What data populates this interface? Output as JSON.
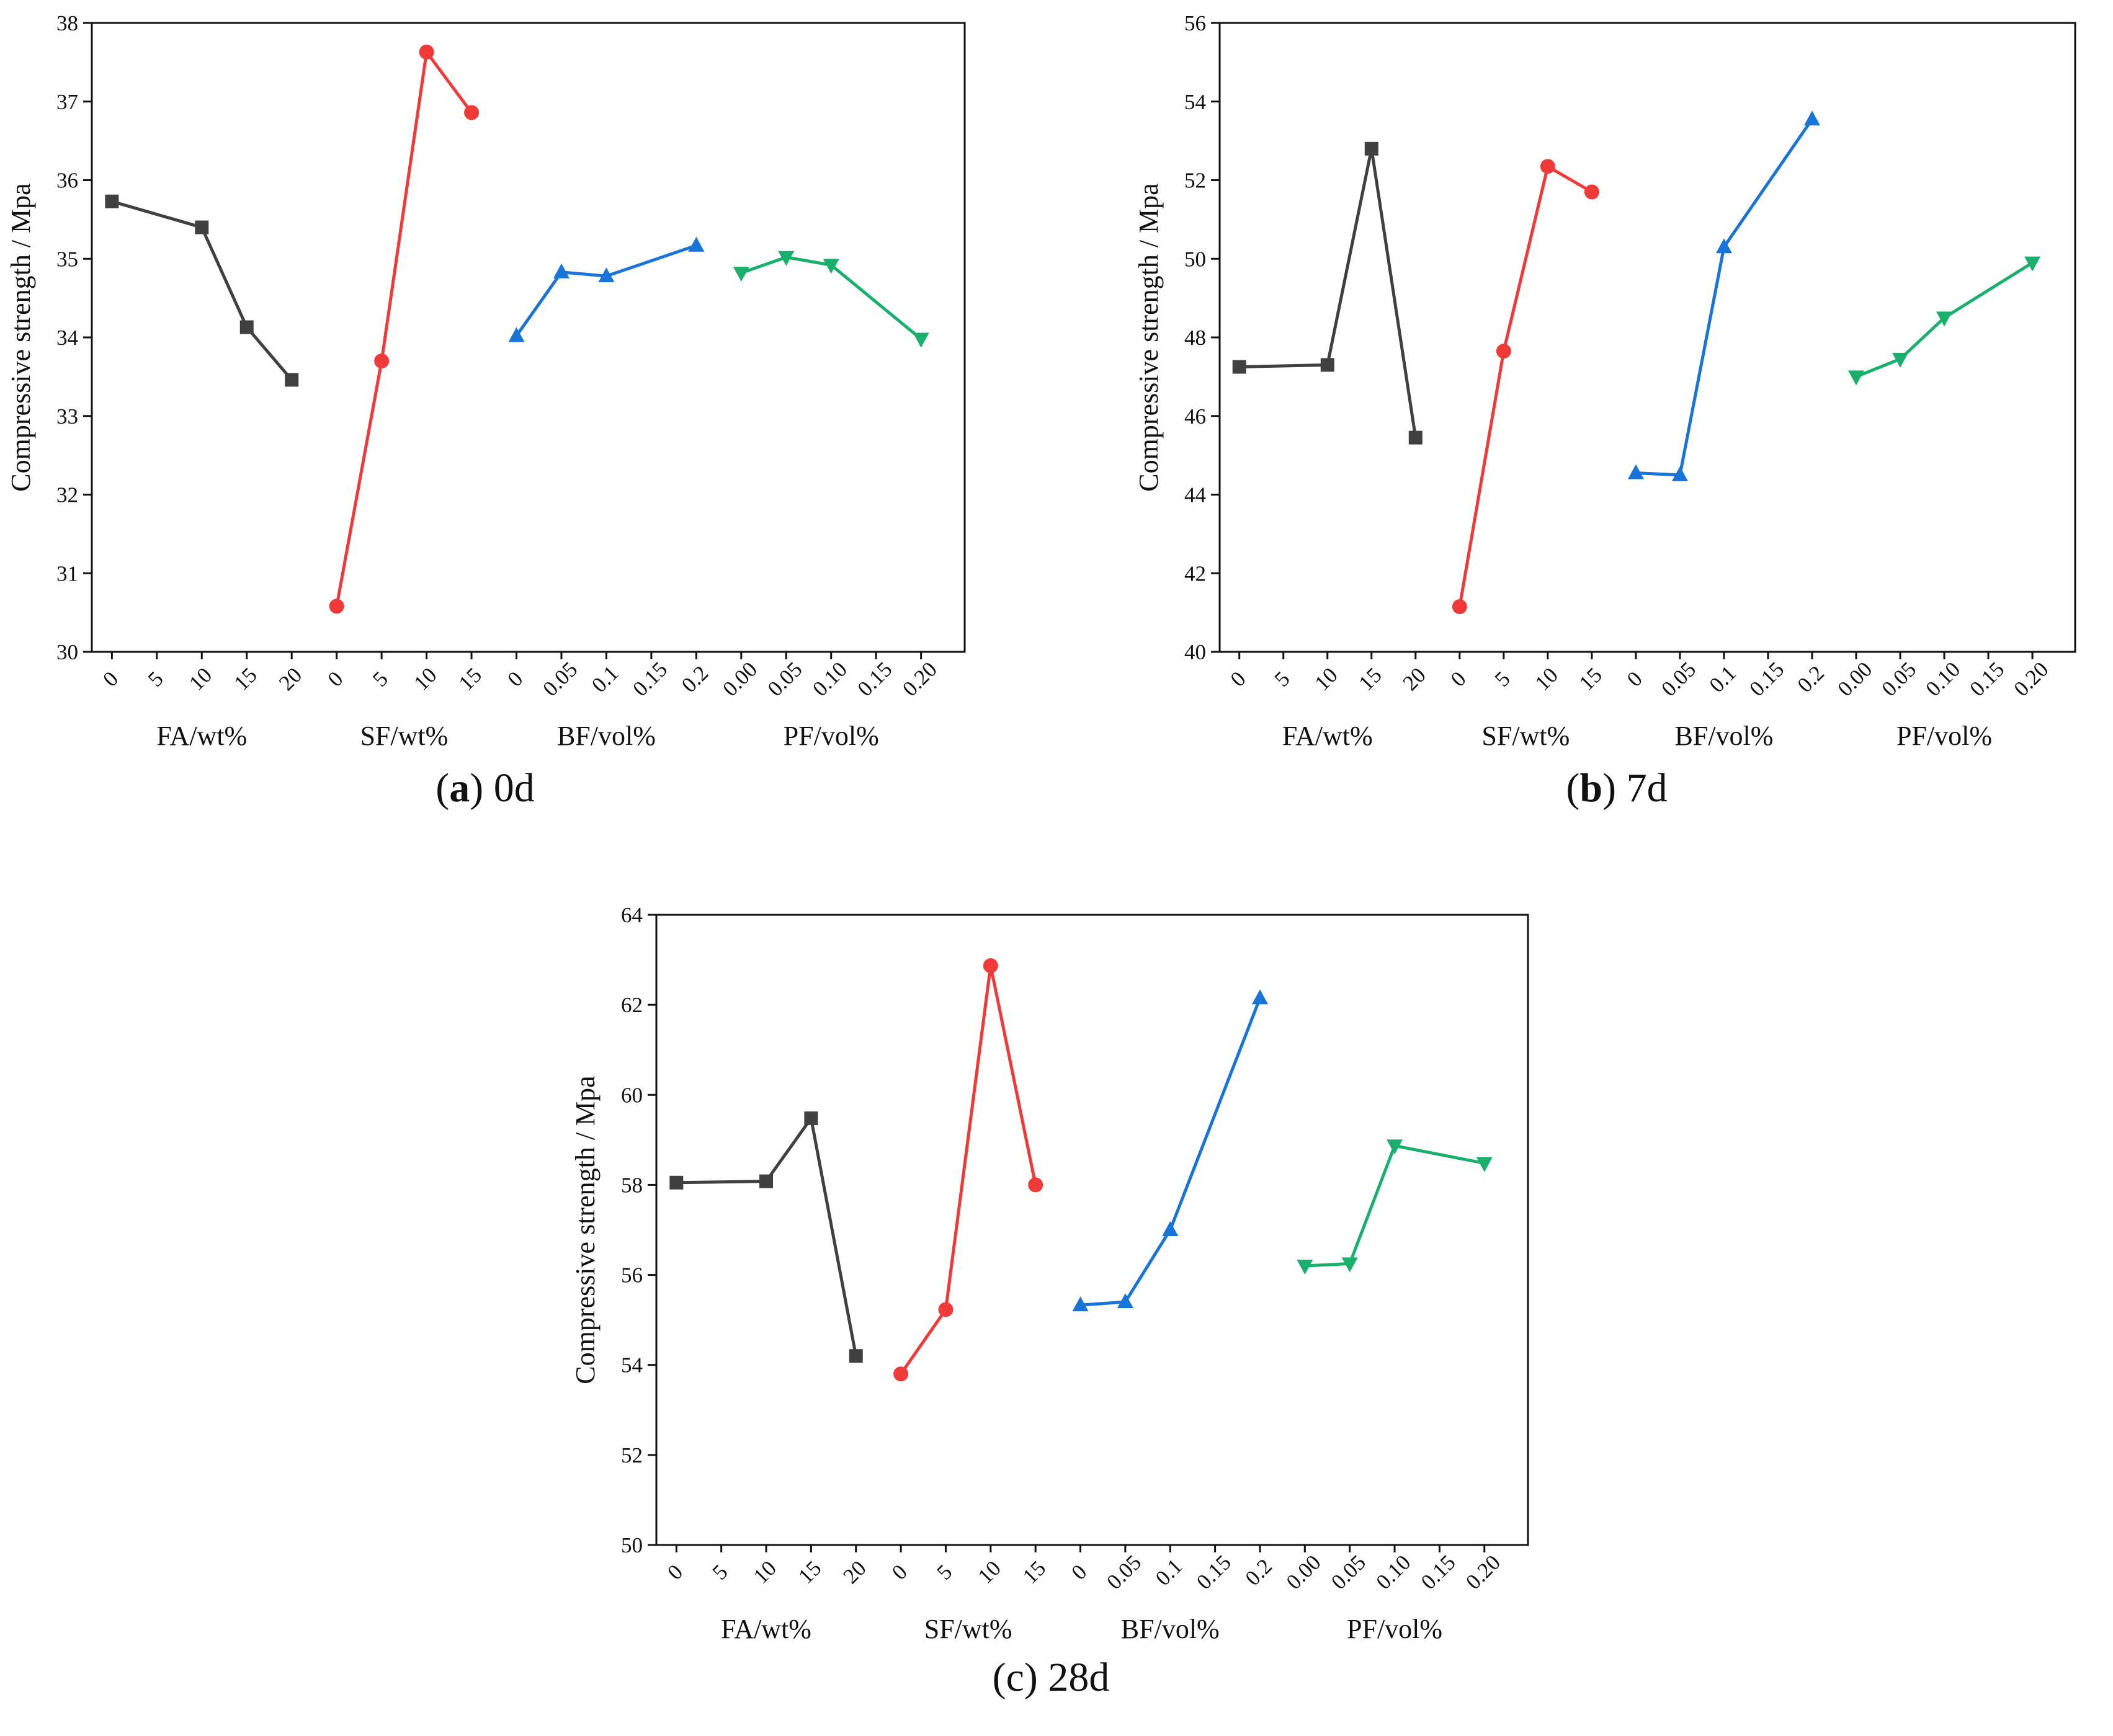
{
  "chart_data": [
    {
      "type": "line",
      "caption": [
        "(",
        "a",
        ") 0d"
      ],
      "caption_bold_part": 1,
      "y_label": "Compressive strength / Mpa",
      "ylim": [
        30,
        38
      ],
      "yticks": [
        30,
        31,
        32,
        33,
        34,
        35,
        36,
        37,
        38
      ],
      "series": [
        {
          "name": "FA/wt%",
          "color": "#404040",
          "marker": "square",
          "xlim": [
            0,
            20
          ],
          "xticks": [
            0,
            5,
            10,
            15,
            20
          ],
          "x": [
            0,
            10,
            15,
            20
          ],
          "values": [
            35.73,
            35.4,
            34.13,
            33.46
          ]
        },
        {
          "name": "SF/wt%",
          "color": "#f03a3a",
          "marker": "circle",
          "xlim": [
            0,
            15
          ],
          "xticks": [
            0,
            5,
            10,
            15
          ],
          "x": [
            0,
            5,
            10,
            15
          ],
          "values": [
            30.58,
            33.7,
            37.63,
            36.86
          ]
        },
        {
          "name": "BF/vol%",
          "color": "#1874d8",
          "marker": "triangle-up",
          "xlim": [
            0,
            0.2
          ],
          "xticks": [
            0,
            0.05,
            0.1,
            0.15,
            0.2
          ],
          "x": [
            0,
            0.05,
            0.1,
            0.2
          ],
          "values": [
            34.02,
            34.83,
            34.78,
            35.17
          ]
        },
        {
          "name": "PF/vol%",
          "color": "#18b06c",
          "marker": "triangle-down",
          "xlim": [
            0,
            0.2
          ],
          "xticks": [
            {
              "value": 0,
              "label": "0.00"
            },
            {
              "value": 0.05,
              "label": "0.05"
            },
            {
              "value": 0.1,
              "label": "0.10"
            },
            {
              "value": 0.15,
              "label": "0.15"
            },
            {
              "value": 0.2,
              "label": "0.20"
            }
          ],
          "x": [
            0,
            0.05,
            0.1,
            0.2
          ],
          "values": [
            34.82,
            35.02,
            34.92,
            33.98
          ]
        }
      ]
    },
    {
      "type": "line",
      "caption": [
        "(",
        "b",
        ") 7d"
      ],
      "caption_bold_part": 1,
      "y_label": "Compressive strength / Mpa",
      "ylim": [
        40,
        56
      ],
      "yticks": [
        40,
        42,
        44,
        46,
        48,
        50,
        52,
        54,
        56
      ],
      "series": [
        {
          "name": "FA/wt%",
          "color": "#404040",
          "marker": "square",
          "xlim": [
            0,
            20
          ],
          "xticks": [
            0,
            5,
            10,
            15,
            20
          ],
          "x": [
            0,
            10,
            15,
            20
          ],
          "values": [
            47.25,
            47.3,
            52.8,
            45.45
          ]
        },
        {
          "name": "SF/wt%",
          "color": "#f03a3a",
          "marker": "circle",
          "xlim": [
            0,
            15
          ],
          "xticks": [
            0,
            5,
            10,
            15
          ],
          "x": [
            0,
            5,
            10,
            15
          ],
          "values": [
            41.15,
            47.65,
            52.35,
            51.7
          ]
        },
        {
          "name": "BF/vol%",
          "color": "#1874d8",
          "marker": "triangle-up",
          "xlim": [
            0,
            0.2
          ],
          "xticks": [
            0,
            0.05,
            0.1,
            0.15,
            0.2
          ],
          "x": [
            0,
            0.05,
            0.1,
            0.2
          ],
          "values": [
            44.55,
            44.5,
            50.3,
            53.55
          ]
        },
        {
          "name": "PF/vol%",
          "color": "#18b06c",
          "marker": "triangle-down",
          "xlim": [
            0,
            0.2
          ],
          "xticks": [
            {
              "value": 0,
              "label": "0.00"
            },
            {
              "value": 0.05,
              "label": "0.05"
            },
            {
              "value": 0.1,
              "label": "0.10"
            },
            {
              "value": 0.15,
              "label": "0.15"
            },
            {
              "value": 0.2,
              "label": "0.20"
            }
          ],
          "x": [
            0,
            0.05,
            0.1,
            0.2
          ],
          "values": [
            47.0,
            47.45,
            48.5,
            49.9
          ]
        }
      ]
    },
    {
      "type": "line",
      "caption": [
        "(",
        "c",
        ") 28d"
      ],
      "y_label": "Compressive strength / Mpa",
      "ylim": [
        50,
        64
      ],
      "yticks": [
        50,
        52,
        54,
        56,
        58,
        60,
        62,
        64
      ],
      "series": [
        {
          "name": "FA/wt%",
          "color": "#404040",
          "marker": "square",
          "xlim": [
            0,
            20
          ],
          "xticks": [
            0,
            5,
            10,
            15,
            20
          ],
          "x": [
            0,
            10,
            15,
            20
          ],
          "values": [
            58.05,
            58.08,
            59.48,
            54.2
          ]
        },
        {
          "name": "SF/wt%",
          "color": "#f03a3a",
          "marker": "circle",
          "xlim": [
            0,
            15
          ],
          "xticks": [
            0,
            5,
            10,
            15
          ],
          "x": [
            0,
            5,
            10,
            15
          ],
          "values": [
            53.8,
            55.23,
            62.87,
            58.0
          ]
        },
        {
          "name": "BF/vol%",
          "color": "#1874d8",
          "marker": "triangle-up",
          "xlim": [
            0,
            0.2
          ],
          "xticks": [
            0,
            0.05,
            0.1,
            0.15,
            0.2
          ],
          "x": [
            0,
            0.05,
            0.1,
            0.2
          ],
          "values": [
            55.33,
            55.4,
            57.0,
            62.15
          ]
        },
        {
          "name": "PF/vol%",
          "color": "#18b06c",
          "marker": "triangle-down",
          "xlim": [
            0,
            0.2
          ],
          "xticks": [
            {
              "value": 0,
              "label": "0.00"
            },
            {
              "value": 0.05,
              "label": "0.05"
            },
            {
              "value": 0.1,
              "label": "0.10"
            },
            {
              "value": 0.15,
              "label": "0.15"
            },
            {
              "value": 0.2,
              "label": "0.20"
            }
          ],
          "x": [
            0,
            0.05,
            0.1,
            0.2
          ],
          "values": [
            56.2,
            56.25,
            58.87,
            58.48
          ]
        }
      ]
    }
  ]
}
